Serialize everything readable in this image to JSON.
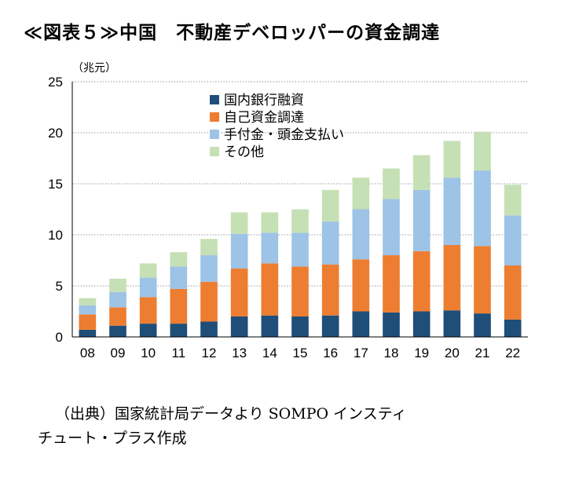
{
  "title": "≪図表５≫中国　不動産デベロッパーの資金調達",
  "chart_data": {
    "type": "bar",
    "stacked": true,
    "unit_label": "（兆元）",
    "categories": [
      "08",
      "09",
      "10",
      "11",
      "12",
      "13",
      "14",
      "15",
      "16",
      "17",
      "18",
      "19",
      "20",
      "21",
      "22"
    ],
    "ylim": [
      0,
      25
    ],
    "yticks": [
      0,
      5,
      10,
      15,
      20,
      25
    ],
    "grid": true,
    "legend_position": "top-left inside plot",
    "series": [
      {
        "name": "国内銀行融資",
        "color": "#1F4E79",
        "values": [
          0.7,
          1.1,
          1.3,
          1.3,
          1.5,
          2.0,
          2.1,
          2.0,
          2.1,
          2.5,
          2.4,
          2.5,
          2.6,
          2.3,
          1.7
        ]
      },
      {
        "name": "自己資金調達",
        "color": "#ED7D31",
        "values": [
          1.5,
          1.8,
          2.6,
          3.4,
          3.9,
          4.7,
          5.1,
          4.9,
          5.0,
          5.1,
          5.6,
          5.9,
          6.4,
          6.6,
          5.3
        ]
      },
      {
        "name": "手付金・頭金支払い",
        "color": "#9DC3E6",
        "values": [
          0.9,
          1.5,
          1.9,
          2.2,
          2.6,
          3.4,
          3.0,
          3.3,
          4.2,
          4.9,
          5.5,
          6.0,
          6.6,
          7.4,
          4.9
        ]
      },
      {
        "name": "その他",
        "color": "#C5E0B4",
        "values": [
          0.7,
          1.3,
          1.4,
          1.4,
          1.6,
          2.1,
          2.0,
          2.3,
          3.1,
          3.1,
          3.0,
          3.4,
          3.6,
          3.8,
          3.0
        ]
      }
    ]
  },
  "source": {
    "line1": "（出典）国家統計局データより SOMPO インスティ",
    "line2": "チュート・プラス作成"
  }
}
